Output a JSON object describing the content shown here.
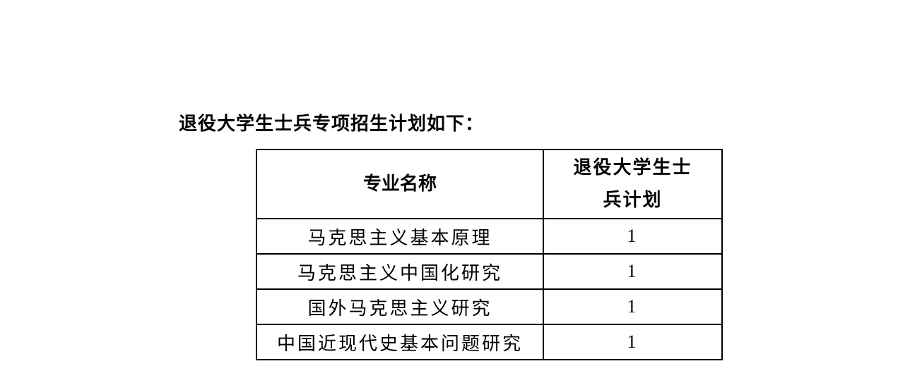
{
  "heading": "退役大学生士兵专项招生计划如下：",
  "table": {
    "header": [
      "专业名称",
      "退役大学生士兵计划"
    ],
    "rows": [
      [
        "马克思主义基本原理",
        1
      ],
      [
        "马克思主义中国化研究",
        1
      ],
      [
        "国外马克思主义研究",
        1
      ],
      [
        "中国近现代史基本问题研究",
        1
      ]
    ]
  }
}
